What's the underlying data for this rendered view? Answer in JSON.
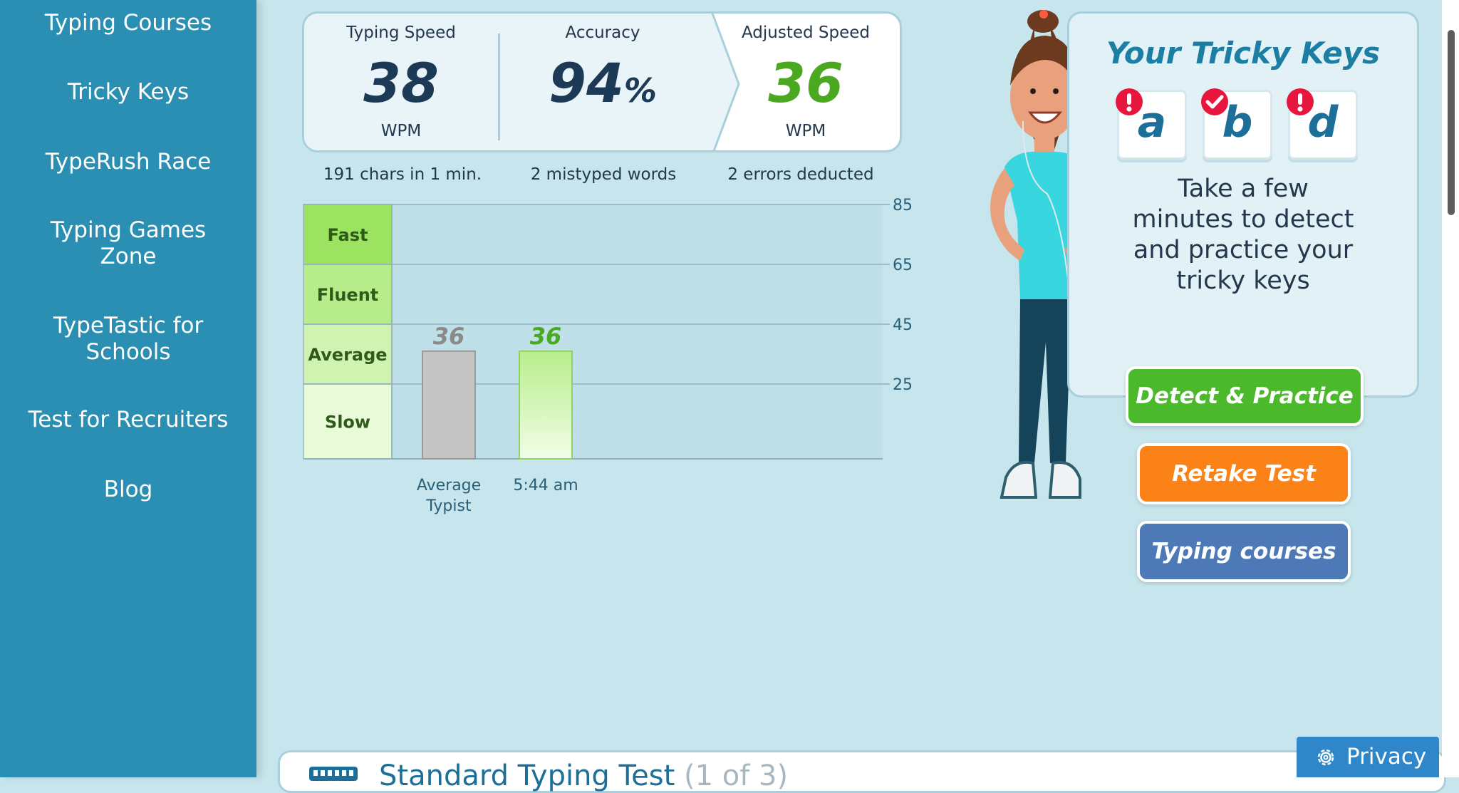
{
  "sidebar": {
    "items": [
      {
        "label": "Typing Courses"
      },
      {
        "label": "Tricky Keys"
      },
      {
        "label": "TypeRush Race"
      },
      {
        "label": "Typing Games",
        "label2": "Zone"
      },
      {
        "label": "TypeTastic for",
        "label2": "Schools"
      },
      {
        "label": "Test for Recruiters"
      },
      {
        "label": "Blog"
      }
    ]
  },
  "stats": {
    "speed": {
      "label": "Typing Speed",
      "value": "38",
      "unit": "WPM"
    },
    "accuracy": {
      "label": "Accuracy",
      "value": "94",
      "suffix": "%"
    },
    "adjusted": {
      "label": "Adjusted Speed",
      "value": "36",
      "unit": "WPM"
    },
    "chars": "191 chars in 1 min.",
    "mistyped": "2 mistyped words",
    "errors": "2 errors deducted"
  },
  "chart_data": {
    "type": "bar",
    "categories": [
      "Average Typist",
      "5:44 am"
    ],
    "category_label_lines": [
      [
        "Average",
        "Typist"
      ],
      [
        "5:44 am"
      ]
    ],
    "values": [
      36,
      36
    ],
    "value_labels": [
      "36",
      "36"
    ],
    "bar_colors": [
      "#c4c4c4",
      "#b8ee8c"
    ],
    "value_label_colors": [
      "#8a8a8a",
      "#4aa821"
    ],
    "yticks": [
      25,
      45,
      65,
      85
    ],
    "ylim": [
      0,
      85
    ],
    "grid": true,
    "bands": [
      {
        "label": "Fast",
        "from": 65,
        "to": 85,
        "color": "#9be361"
      },
      {
        "label": "Fluent",
        "from": 45,
        "to": 65,
        "color": "#b6ec8a"
      },
      {
        "label": "Average",
        "from": 25,
        "to": 45,
        "color": "#d0f3b1"
      },
      {
        "label": "Slow",
        "from": 0,
        "to": 25,
        "color": "#e9fbd9"
      }
    ]
  },
  "tricky": {
    "title": "Your Tricky Keys",
    "keys": [
      {
        "letter": "a",
        "status": "error"
      },
      {
        "letter": "b",
        "status": "ok"
      },
      {
        "letter": "d",
        "status": "error"
      }
    ],
    "text": [
      "Take a few",
      "minutes to detect",
      "and practice your",
      "tricky keys"
    ],
    "colors": {
      "error": "#e8163c",
      "ok": "#e8163c"
    }
  },
  "buttons": {
    "detect": "Detect & Practice",
    "retake": "Retake Test",
    "courses": "Typing courses"
  },
  "bottom": {
    "title": "Standard Typing Test",
    "subtitle": "(1 of 3)"
  },
  "privacy": {
    "label": "Privacy"
  }
}
